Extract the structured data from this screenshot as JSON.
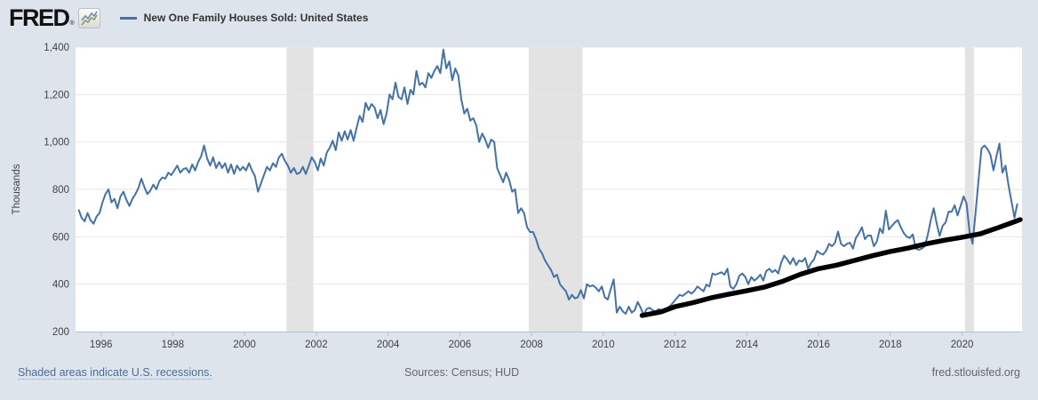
{
  "header": {
    "logo_text": "FRED",
    "logo_registered": "®",
    "legend_label": "New One Family Houses Sold: United States"
  },
  "footer": {
    "left_note": "Shaded areas indicate U.S. recessions.",
    "sources": "Sources: Census; HUD",
    "site": "fred.stlouisfed.org"
  },
  "colors": {
    "background": "#dde4ec",
    "plot_background": "#ffffff",
    "series_line": "#4472a8",
    "annotation_line": "#000000",
    "recession_band": "#e3e3e3",
    "gridline": "#e6e6e6",
    "axis_line": "#b7bfc9",
    "axis_text": "#424242",
    "footer_text": "#666666",
    "link_text": "#4a6d9c"
  },
  "chart_data": {
    "type": "line",
    "title": "New One Family Houses Sold: United States",
    "ylabel": "Thousands",
    "units": "Thousands",
    "grid": "horizontal",
    "legend_position": "top-left",
    "ylim": [
      200,
      1400
    ],
    "y_ticks": [
      200,
      400,
      600,
      800,
      1000,
      1200,
      1400
    ],
    "y_tick_labels": [
      "200",
      "400",
      "600",
      "800",
      "1,000",
      "1,200",
      "1,400"
    ],
    "x_tick_years": [
      1996,
      1998,
      2000,
      2002,
      2004,
      2006,
      2008,
      2010,
      2012,
      2014,
      2016,
      2018,
      2020
    ],
    "x_range_years": [
      1995.29,
      2021.67
    ],
    "recessions": [
      [
        2001.17,
        2001.92
      ],
      [
        2007.92,
        2009.42
      ],
      [
        2020.08,
        2020.33
      ]
    ],
    "series": [
      {
        "name": "New One Family Houses Sold: United States",
        "color": "#4472a8",
        "stroke_width": 2,
        "frequency": "monthly",
        "start": "1995-05",
        "end": "2021-07",
        "values": [
          715,
          680,
          665,
          700,
          670,
          655,
          685,
          700,
          745,
          780,
          800,
          745,
          760,
          720,
          770,
          790,
          755,
          730,
          760,
          780,
          805,
          845,
          810,
          780,
          795,
          820,
          800,
          835,
          850,
          845,
          870,
          860,
          880,
          900,
          870,
          885,
          890,
          870,
          905,
          880,
          915,
          940,
          985,
          930,
          900,
          935,
          890,
          915,
          890,
          910,
          870,
          905,
          865,
          900,
          880,
          895,
          880,
          910,
          880,
          855,
          790,
          825,
          860,
          895,
          880,
          910,
          895,
          935,
          950,
          920,
          900,
          870,
          890,
          865,
          870,
          895,
          865,
          900,
          935,
          915,
          880,
          930,
          900,
          955,
          975,
          1005,
          965,
          1040,
          1005,
          1045,
          1010,
          1050,
          1005,
          1060,
          1110,
          1085,
          1165,
          1135,
          1160,
          1145,
          1100,
          1135,
          1075,
          1120,
          1200,
          1180,
          1250,
          1190,
          1180,
          1230,
          1160,
          1220,
          1200,
          1300,
          1240,
          1250,
          1230,
          1290,
          1270,
          1300,
          1320,
          1290,
          1390,
          1310,
          1340,
          1260,
          1310,
          1280,
          1180,
          1120,
          1140,
          1090,
          1100,
          1070,
          1000,
          1035,
          1010,
          975,
          1010,
          1000,
          890,
          860,
          830,
          870,
          840,
          790,
          800,
          700,
          720,
          700,
          640,
          620,
          620,
          590,
          550,
          530,
          500,
          480,
          460,
          430,
          440,
          400,
          385,
          370,
          335,
          355,
          340,
          345,
          375,
          340,
          400,
          390,
          395,
          385,
          370,
          390,
          345,
          335,
          380,
          420,
          280,
          305,
          285,
          275,
          305,
          280,
          290,
          325,
          300,
          270,
          295,
          300,
          290,
          285,
          295,
          290,
          285,
          300,
          310,
          325,
          340,
          355,
          350,
          360,
          370,
          360,
          372,
          390,
          380,
          370,
          398,
          390,
          445,
          440,
          445,
          450,
          440,
          465,
          390,
          380,
          400,
          435,
          445,
          430,
          400,
          430,
          415,
          425,
          440,
          415,
          455,
          465,
          450,
          460,
          445,
          490,
          520,
          505,
          485,
          510,
          480,
          500,
          495,
          510,
          465,
          490,
          505,
          540,
          530,
          525,
          540,
          570,
          560,
          575,
          622,
          570,
          560,
          570,
          575,
          550,
          595,
          615,
          640,
          590,
          605,
          605,
          560,
          580,
          635,
          615,
          710,
          630,
          645,
          660,
          670,
          640,
          615,
          600,
          595,
          610,
          550,
          545,
          550,
          560,
          607,
          669,
          720,
          656,
          604,
          646,
          661,
          706,
          705,
          733,
          690,
          730,
          770,
          740,
          620,
          570,
          700,
          840,
          972,
          985,
          970,
          945,
          880,
          940,
          993,
          870,
          900,
          820,
          750,
          680,
          740
        ]
      },
      {
        "name": "annotation-trend-line",
        "color": "#000000",
        "stroke_width": 5.5,
        "points": [
          [
            2011.08,
            268
          ],
          [
            2011.6,
            283
          ],
          [
            2012.0,
            305
          ],
          [
            2012.5,
            322
          ],
          [
            2013.0,
            342
          ],
          [
            2013.5,
            358
          ],
          [
            2014.0,
            372
          ],
          [
            2014.5,
            388
          ],
          [
            2015.0,
            412
          ],
          [
            2015.5,
            442
          ],
          [
            2016.0,
            465
          ],
          [
            2016.5,
            480
          ],
          [
            2017.0,
            500
          ],
          [
            2017.5,
            520
          ],
          [
            2018.0,
            538
          ],
          [
            2018.5,
            552
          ],
          [
            2019.0,
            570
          ],
          [
            2019.5,
            585
          ],
          [
            2020.0,
            598
          ],
          [
            2020.5,
            612
          ],
          [
            2021.0,
            638
          ],
          [
            2021.62,
            672
          ]
        ]
      }
    ]
  }
}
